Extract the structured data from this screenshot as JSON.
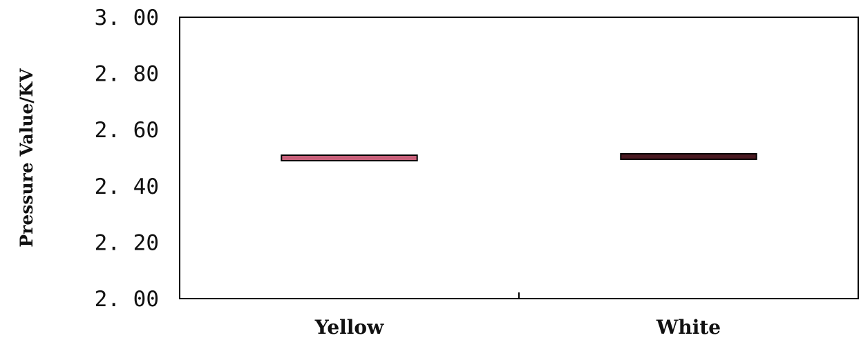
{
  "chart_data": {
    "type": "bar",
    "title": "",
    "xlabel": "",
    "ylabel": "Pressure Value/KV",
    "categories": [
      "Yellow",
      "White"
    ],
    "values": [
      2.5,
      2.505
    ],
    "ylim": [
      2.0,
      3.0
    ],
    "yticks": [
      "3. 00",
      "2. 80",
      "2. 60",
      "2. 40",
      "2. 20",
      "2. 00"
    ],
    "ytick_values": [
      3.0,
      2.8,
      2.6,
      2.4,
      2.2,
      2.0
    ],
    "grid": false,
    "legend": "none",
    "colors": {
      "yellow_fill": "#c8607a",
      "white_fill": "#4a1a22",
      "mark_stroke": "#000000",
      "axis": "#000000"
    }
  }
}
